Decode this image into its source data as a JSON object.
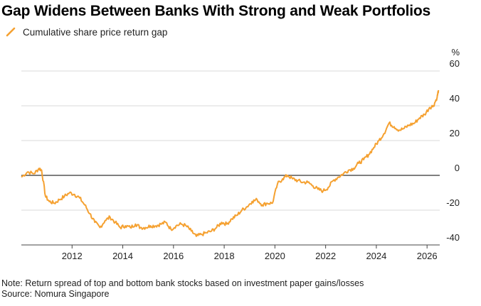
{
  "title": "Gap Widens Between Banks With Strong and Weak Portfolios",
  "note": "Note: Return spread of top and bottom bank stocks based on investment paper gains/losses",
  "source": "Source: Nomura Singapore",
  "colors": {
    "series": "#f5a131",
    "zero_line": "#333333",
    "grid": "#d9d9d9"
  },
  "chart_data": {
    "type": "line",
    "title": "Gap Widens Between Banks With Strong and Weak Portfolios",
    "xlabel": "",
    "ylabel": "%",
    "y_unit": "%",
    "xlim": [
      2010.0,
      2026.5
    ],
    "ylim": [
      -40,
      60
    ],
    "x_ticks": [
      2012,
      2014,
      2016,
      2018,
      2020,
      2022,
      2024,
      2026
    ],
    "x_tick_labels": [
      "2012",
      "2014",
      "2016",
      "2018",
      "2020",
      "2022",
      "2024",
      "2026"
    ],
    "y_ticks": [
      -40,
      -20,
      0,
      20,
      40,
      60
    ],
    "y_tick_labels": [
      "-40",
      "-20",
      "0",
      "20",
      "40",
      "60"
    ],
    "grid": "horizontal",
    "legend_position": "top-left",
    "series": [
      {
        "name": "Cumulative share price return gap",
        "x": [
          2010.0,
          2010.25,
          2010.5,
          2010.7,
          2010.8,
          2010.95,
          2011.1,
          2011.3,
          2011.5,
          2011.7,
          2011.9,
          2012.1,
          2012.3,
          2012.5,
          2012.7,
          2012.9,
          2013.1,
          2013.3,
          2013.5,
          2013.7,
          2013.9,
          2014.1,
          2014.3,
          2014.5,
          2014.7,
          2014.9,
          2015.1,
          2015.3,
          2015.5,
          2015.7,
          2015.9,
          2016.1,
          2016.3,
          2016.5,
          2016.7,
          2016.9,
          2017.1,
          2017.3,
          2017.5,
          2017.7,
          2017.9,
          2018.1,
          2018.3,
          2018.5,
          2018.7,
          2018.9,
          2019.1,
          2019.3,
          2019.5,
          2019.7,
          2019.9,
          2020.1,
          2020.3,
          2020.5,
          2020.7,
          2020.9,
          2021.1,
          2021.3,
          2021.5,
          2021.7,
          2021.9,
          2022.1,
          2022.3,
          2022.5,
          2022.7,
          2022.9,
          2023.1,
          2023.3,
          2023.5,
          2023.7,
          2023.9,
          2024.1,
          2024.3,
          2024.5,
          2024.7,
          2024.9,
          2025.1,
          2025.3,
          2025.5,
          2025.7,
          2025.9,
          2026.1,
          2026.25,
          2026.4,
          2026.45
        ],
        "values": [
          -1,
          2,
          1,
          4,
          3,
          -12,
          -15,
          -16,
          -14,
          -12,
          -10,
          -11,
          -13,
          -17,
          -22,
          -27,
          -30,
          -26,
          -24,
          -27,
          -30,
          -29,
          -30,
          -28,
          -30,
          -30,
          -29,
          -29,
          -28,
          -27,
          -31,
          -29,
          -28,
          -29,
          -32,
          -35,
          -34,
          -33,
          -32,
          -30,
          -27,
          -28,
          -25,
          -23,
          -20,
          -18,
          -15,
          -14,
          -17,
          -16,
          -16,
          -5,
          -2,
          0,
          -2,
          -3,
          -4,
          -4,
          -6,
          -8,
          -9,
          -7,
          -3,
          -1,
          1,
          3,
          4,
          7,
          9,
          12,
          16,
          20,
          24,
          30,
          28,
          26,
          27,
          29,
          30,
          33,
          35,
          39,
          40,
          45,
          49
        ]
      }
    ]
  }
}
